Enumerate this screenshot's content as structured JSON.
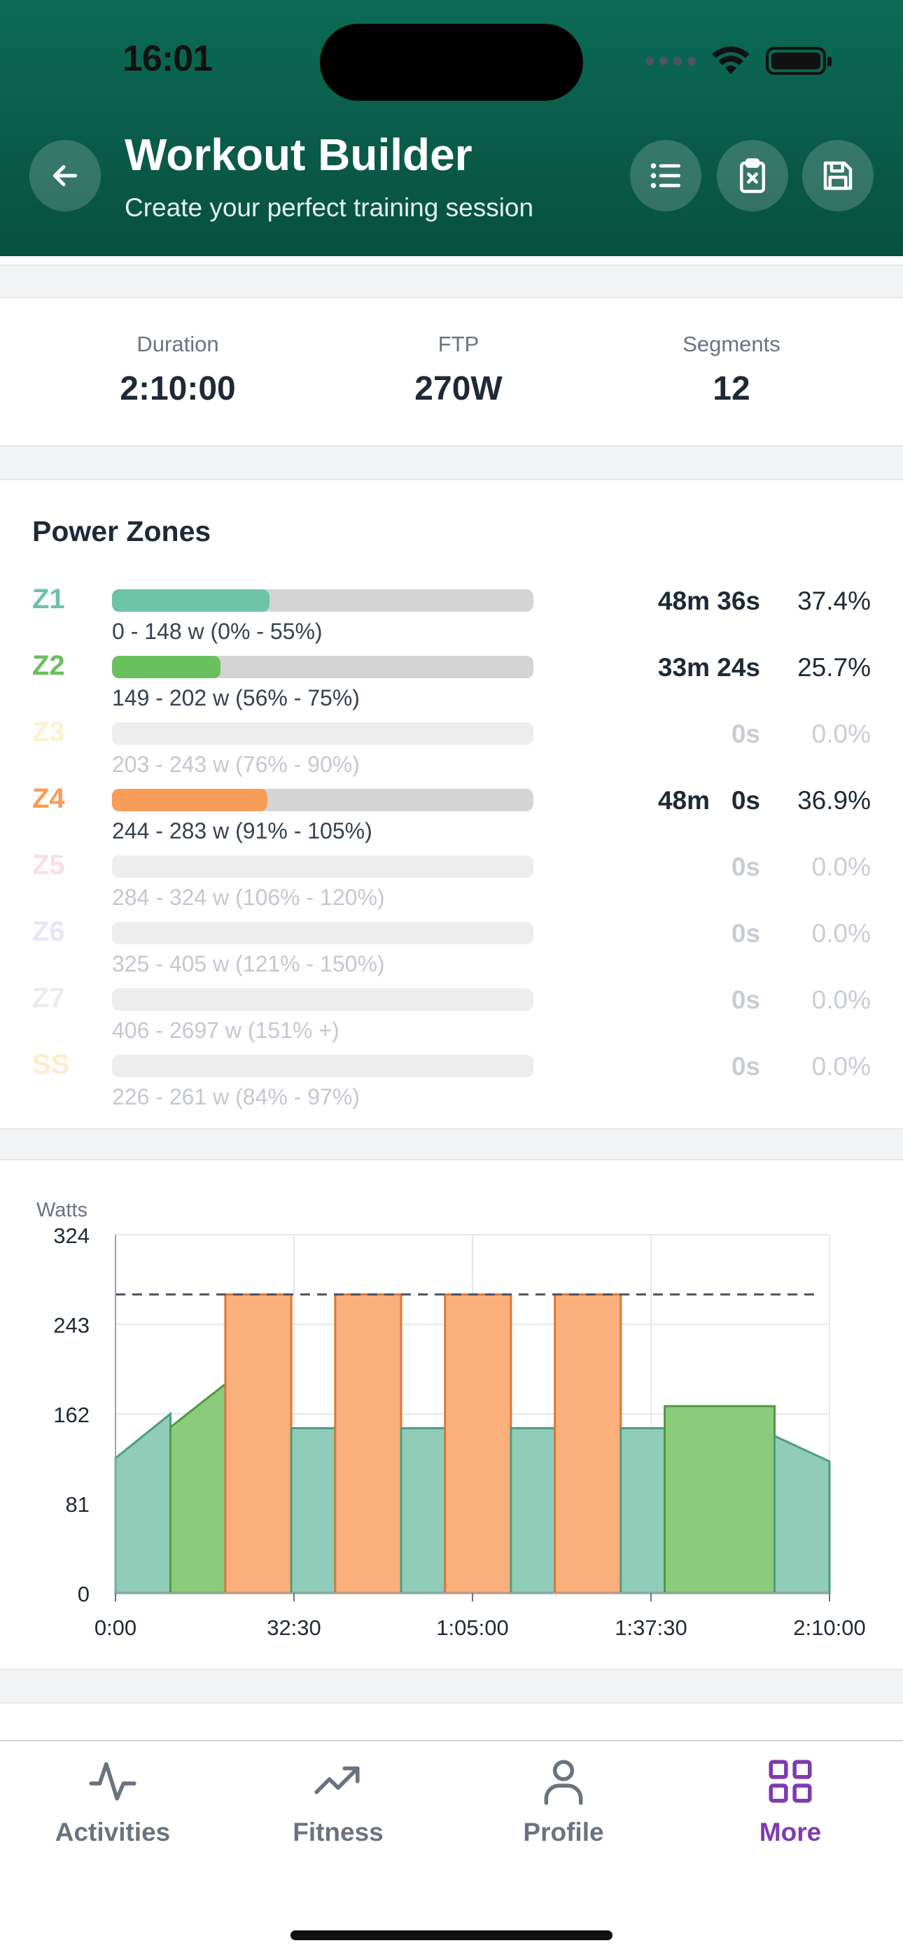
{
  "status": {
    "time": "16:01"
  },
  "header": {
    "title": "Workout Builder",
    "subtitle": "Create your perfect training session"
  },
  "icons": {
    "back": "arrow-left-icon",
    "list": "list-icon",
    "clipboard": "clipboard-x-icon",
    "save": "floppy-disk-icon"
  },
  "stats": [
    {
      "label": "Duration",
      "value": "2:10:00"
    },
    {
      "label": "FTP",
      "value": "270W"
    },
    {
      "label": "Segments",
      "value": "12"
    }
  ],
  "zones": {
    "title": "Power Zones",
    "items": [
      {
        "code": "Z1",
        "range": "0 - 148 w (0% - 55%)",
        "time": "48m 36s",
        "pct": "37.4%",
        "share": 0.374,
        "color": "#6cc3a6",
        "active": true
      },
      {
        "code": "Z2",
        "range": "149 - 202 w (56% - 75%)",
        "time": "33m 24s",
        "pct": "25.7%",
        "share": 0.257,
        "color": "#6abf5e",
        "active": true
      },
      {
        "code": "Z3",
        "range": "203 - 243 w (76% - 90%)",
        "time": "0s",
        "pct": "0.0%",
        "share": 0,
        "color": "#fde7a8",
        "active": false
      },
      {
        "code": "Z4",
        "range": "244 - 283 w (91% - 105%)",
        "time": "48m   0s",
        "pct": "36.9%",
        "share": 0.369,
        "color": "#f99c57",
        "active": true
      },
      {
        "code": "Z5",
        "range": "284 - 324 w (106% - 120%)",
        "time": "0s",
        "pct": "0.0%",
        "share": 0,
        "color": "#f6c5cf",
        "active": false
      },
      {
        "code": "Z6",
        "range": "325 - 405 w (121% - 150%)",
        "time": "0s",
        "pct": "0.0%",
        "share": 0,
        "color": "#d5d0f1",
        "active": false
      },
      {
        "code": "Z7",
        "range": "406 - 2697 w (151% +)",
        "time": "0s",
        "pct": "0.0%",
        "share": 0,
        "color": "#d9dbe0",
        "active": false
      },
      {
        "code": "SS",
        "range": "226 - 261 w (84% - 97%)",
        "time": "0s",
        "pct": "0.0%",
        "share": 0,
        "color": "#fde0a6",
        "active": false
      }
    ]
  },
  "chart_data": {
    "type": "area",
    "ylabel": "Watts",
    "ylim": [
      0,
      324
    ],
    "xlim_sec": [
      0,
      7800
    ],
    "yticks": [
      "324",
      "243",
      "162",
      "81",
      "0"
    ],
    "ytick_values": [
      324,
      243,
      162,
      81,
      0
    ],
    "xticks": [
      "0:00",
      "32:30",
      "1:05:00",
      "1:37:30",
      "2:10:00"
    ],
    "xtick_values_sec": [
      0,
      1950,
      3900,
      5850,
      7800
    ],
    "ftp_line": 270,
    "segments": [
      {
        "zone": "Z1",
        "start": 0,
        "end": 600,
        "p0": 122,
        "p1": 162
      },
      {
        "zone": "Z2",
        "start": 600,
        "end": 1200,
        "p0": 150,
        "p1": 189
      },
      {
        "zone": "Z4",
        "start": 1200,
        "end": 1920,
        "p0": 270,
        "p1": 270
      },
      {
        "zone": "Z1",
        "start": 1920,
        "end": 2400,
        "p0": 149,
        "p1": 149
      },
      {
        "zone": "Z4",
        "start": 2400,
        "end": 3120,
        "p0": 270,
        "p1": 270
      },
      {
        "zone": "Z1",
        "start": 3120,
        "end": 3600,
        "p0": 149,
        "p1": 149
      },
      {
        "zone": "Z4",
        "start": 3600,
        "end": 4320,
        "p0": 270,
        "p1": 270
      },
      {
        "zone": "Z1",
        "start": 4320,
        "end": 4800,
        "p0": 149,
        "p1": 149
      },
      {
        "zone": "Z4",
        "start": 4800,
        "end": 5520,
        "p0": 270,
        "p1": 270
      },
      {
        "zone": "Z1",
        "start": 5520,
        "end": 6000,
        "p0": 149,
        "p1": 149
      },
      {
        "zone": "Z2",
        "start": 6000,
        "end": 7200,
        "p0": 169,
        "p1": 169
      },
      {
        "zone": "Z1",
        "start": 7200,
        "end": 7800,
        "p0": 142,
        "p1": 119
      }
    ],
    "zone_colors": {
      "Z1": {
        "fill": "#8fcdb8",
        "stroke": "#4f9c82"
      },
      "Z2": {
        "fill": "#8bcb7c",
        "stroke": "#4f9a43"
      },
      "Z4": {
        "fill": "#fbb07c",
        "stroke": "#d9783a"
      }
    }
  },
  "tabs": [
    {
      "label": "Activities",
      "icon": "activity-pulse-icon",
      "active": false
    },
    {
      "label": "Fitness",
      "icon": "trending-up-icon",
      "active": false
    },
    {
      "label": "Profile",
      "icon": "user-icon",
      "active": false
    },
    {
      "label": "More",
      "icon": "grid-icon",
      "active": true
    }
  ]
}
